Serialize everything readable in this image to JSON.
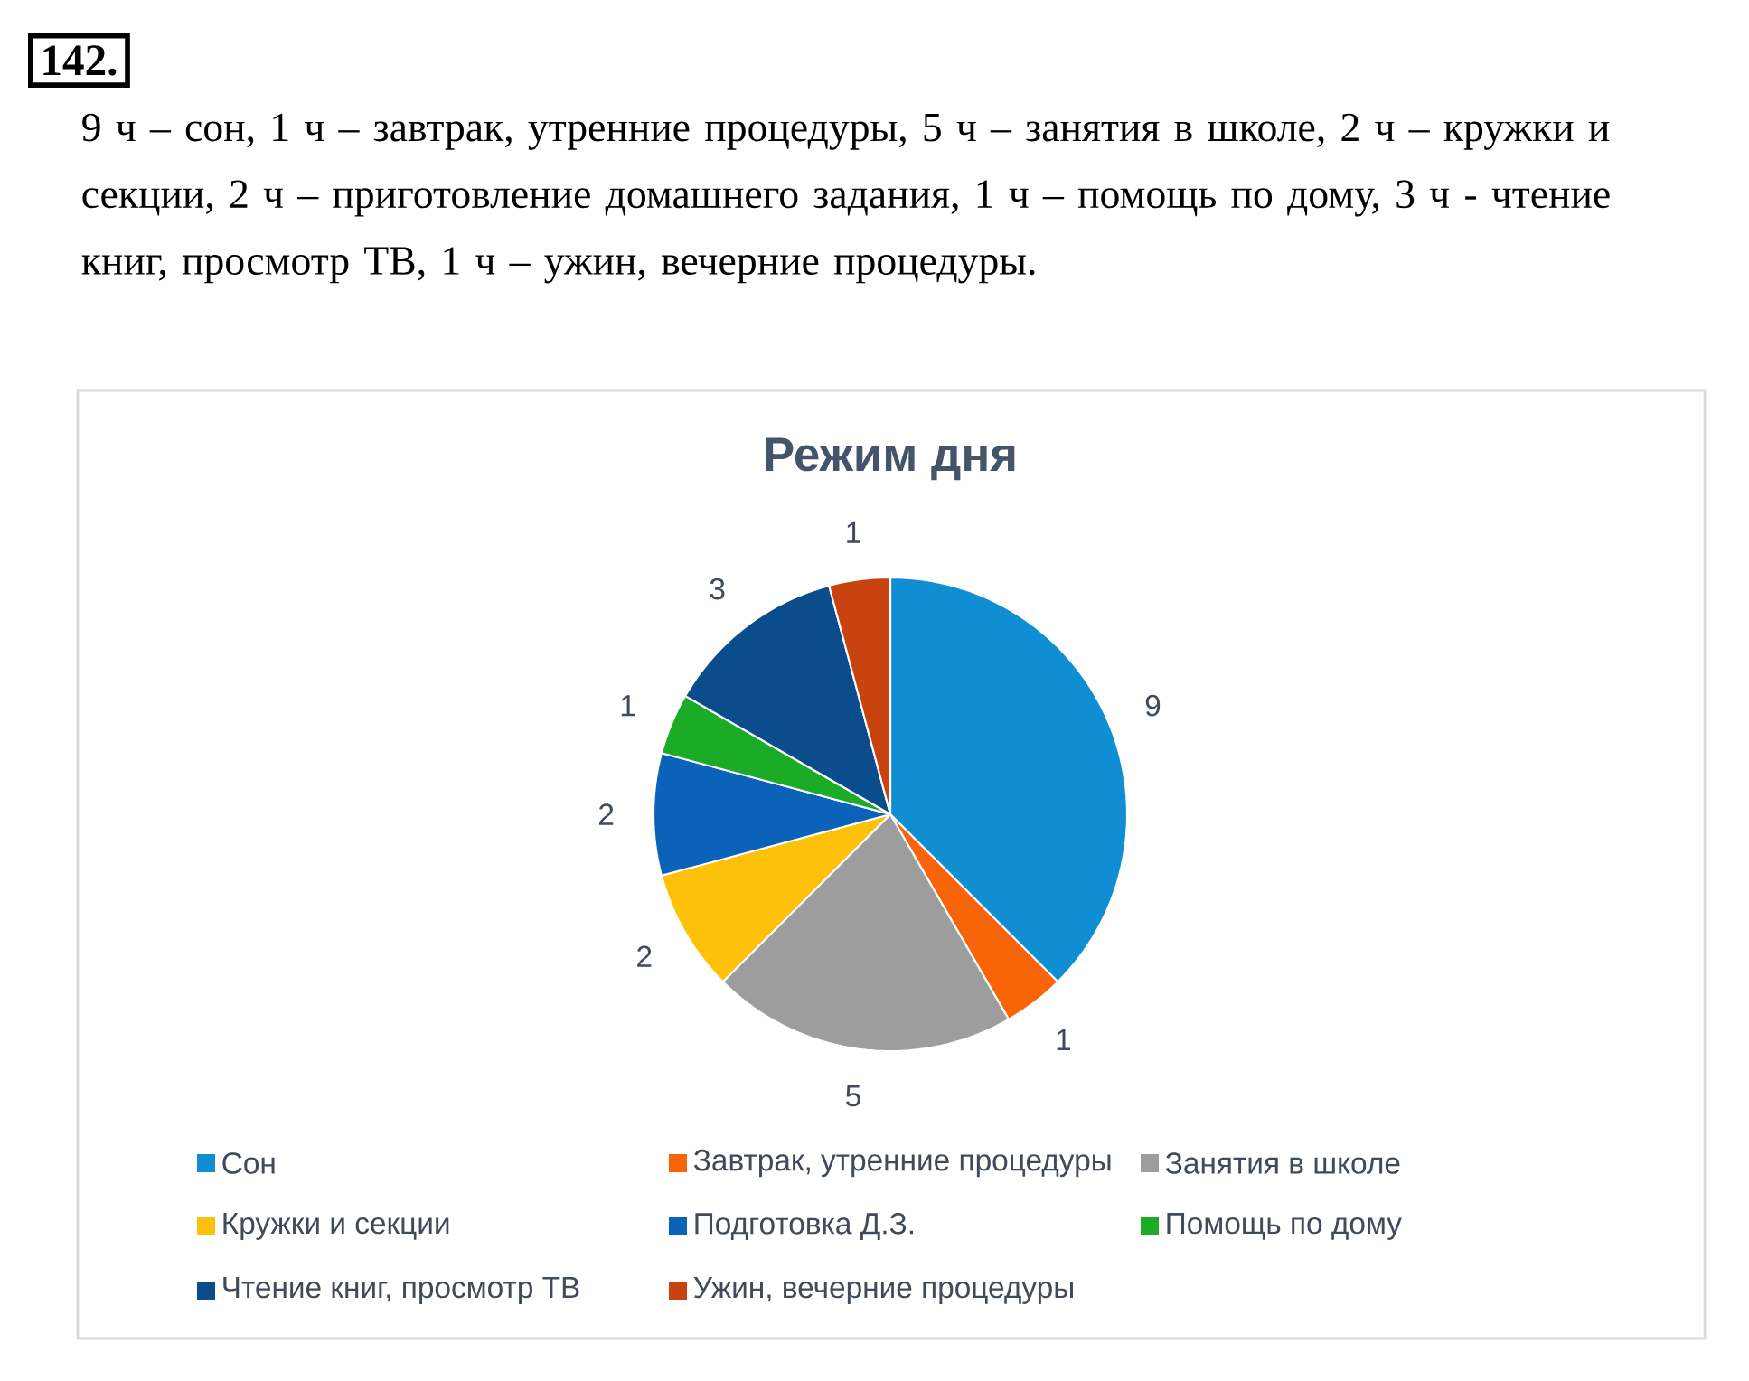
{
  "chart_data": {
    "type": "pie",
    "title": "Режим дня",
    "categories": [
      "Сон",
      "Завтрак, утренние процедуры",
      "Занятия в школе",
      "Кружки и секции",
      "Подготовка Д.З.",
      "Помощь по дому",
      "Чтение книг, просмотр ТВ",
      "Ужин, вечерние процедуры"
    ],
    "values": [
      9,
      1,
      5,
      2,
      2,
      1,
      3,
      1
    ],
    "colors": [
      "#0f8ed3",
      "#f96409",
      "#9d9d9d",
      "#fdc10a",
      "#0a63b8",
      "#1bab27",
      "#0b4d8c",
      "#c8430f"
    ],
    "data_labels": true,
    "legend": "bottom",
    "annotations": [
      "142.",
      "9 ч – сон, 1 ч – завтрак, утренние процедуры, 5 ч – занятия в школе, 2 ч – кружки и секции, 2 ч – приготовление домашнего задания, 1 ч – помощь по дому, 3 ч - чтение книг, просмотр ТВ, 1 ч – ужин, вечерние процедуры."
    ]
  }
}
